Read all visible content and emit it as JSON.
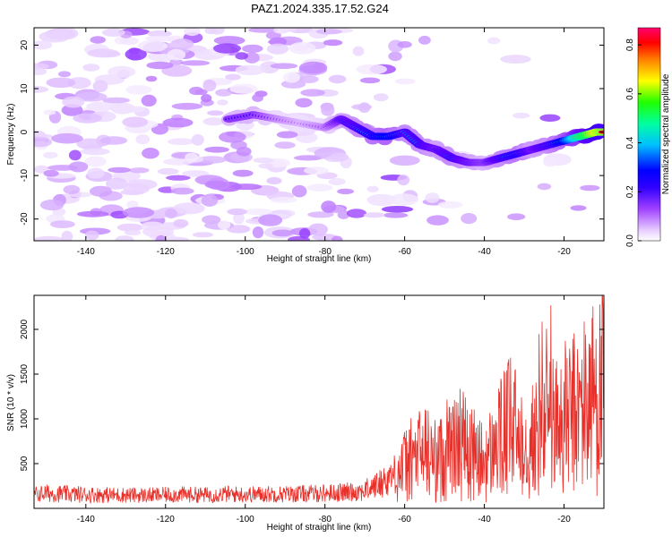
{
  "title": "PAZ1.2024.335.17.52.G24",
  "chart_data": [
    {
      "type": "heatmap",
      "xlabel": "Height of straight line (km)",
      "ylabel": "Frequency (Hz)",
      "xlim": [
        -153,
        -10
      ],
      "ylim": [
        -25,
        24
      ],
      "xticks": [
        -140,
        -120,
        -100,
        -80,
        -60,
        -40,
        -20
      ],
      "yticks": [
        -20,
        -10,
        0,
        10,
        20
      ],
      "colorbar": {
        "label": "Normalized spectral amplitude",
        "range": [
          0.0,
          0.87
        ],
        "ticks": [
          0.0,
          0.2,
          0.4,
          0.6,
          0.8
        ],
        "colors": [
          "#ffffff",
          "#e6ccff",
          "#b060ff",
          "#6000ff",
          "#0000ff",
          "#00d0ff",
          "#00ff60",
          "#ffff00",
          "#ff8000",
          "#ff0000",
          "#ff0060"
        ]
      },
      "ridge": {
        "x": [
          -104,
          -98,
          -92,
          -86,
          -80,
          -76,
          -72,
          -68,
          -64,
          -60,
          -56,
          -52,
          -48,
          -44,
          -40,
          -36,
          -32,
          -28,
          -24,
          -20,
          -16,
          -12,
          -10
        ],
        "frequency": [
          3,
          4,
          3,
          2,
          1,
          3,
          1,
          -1,
          -1,
          0,
          -3,
          -4,
          -6,
          -7,
          -7,
          -6,
          -5,
          -4,
          -3,
          -2,
          -1,
          0,
          0
        ],
        "amplitude": [
          0.3,
          0.3,
          0.2,
          0.15,
          0.2,
          0.35,
          0.4,
          0.45,
          0.5,
          0.4,
          0.4,
          0.35,
          0.4,
          0.35,
          0.3,
          0.4,
          0.45,
          0.35,
          0.4,
          0.5,
          0.7,
          0.85,
          0.8
        ]
      }
    },
    {
      "type": "line",
      "xlabel": "Height of straight line (km)",
      "ylabel": "SNR (10 * v/v)",
      "xlim": [
        -153,
        -10
      ],
      "ylim": [
        0,
        2380
      ],
      "xticks": [
        -140,
        -120,
        -100,
        -80,
        -60,
        -40,
        -20
      ],
      "yticks": [
        500,
        1000,
        1500,
        2000
      ],
      "color": "#e8302a",
      "x": [
        -153,
        -150,
        -145,
        -140,
        -135,
        -130,
        -125,
        -120,
        -115,
        -110,
        -105,
        -100,
        -95,
        -90,
        -85,
        -80,
        -75,
        -70,
        -66,
        -62,
        -58,
        -55,
        -52,
        -49,
        -46,
        -43,
        -40,
        -37,
        -34,
        -31,
        -28,
        -25,
        -22,
        -19,
        -16,
        -13,
        -10
      ],
      "y": [
        150,
        170,
        160,
        155,
        150,
        150,
        145,
        150,
        155,
        150,
        160,
        155,
        160,
        160,
        165,
        170,
        180,
        200,
        280,
        400,
        550,
        650,
        520,
        600,
        750,
        600,
        500,
        700,
        900,
        850,
        750,
        900,
        950,
        1000,
        1100,
        1250,
        1300
      ]
    }
  ]
}
